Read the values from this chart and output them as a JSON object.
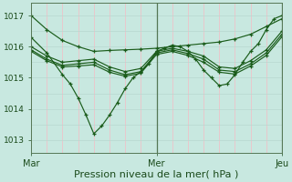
{
  "background_color": "#c8e8e0",
  "plot_bg_color": "#c8e8e0",
  "vgrid_color": "#e8c8cc",
  "hgrid_color": "#b8d8d0",
  "line_color": "#1a5c1a",
  "marker_color": "#1a5c1a",
  "xlabel": "Pression niveau de la mer( hPa )",
  "xlabel_fontsize": 8,
  "ylabel_ticks": [
    1013,
    1014,
    1015,
    1016,
    1017
  ],
  "ylim": [
    1012.6,
    1017.4
  ],
  "xlim": [
    0,
    96
  ],
  "xtick_labels": [
    "Mar",
    "Mer",
    "Jeu"
  ],
  "xtick_positions": [
    0,
    48,
    96
  ],
  "vline_positions": [
    0,
    6,
    12,
    18,
    24,
    30,
    36,
    42,
    48,
    54,
    60,
    66,
    72,
    78,
    84,
    90,
    96
  ],
  "hline_positions": [
    1013,
    1013.5,
    1014,
    1014.5,
    1015,
    1015.5,
    1016,
    1016.5,
    1017
  ],
  "center_vline_x": 48,
  "right_vline_x": 96,
  "lines": [
    {
      "x": [
        0,
        6,
        12,
        18,
        24,
        30,
        36,
        42,
        48,
        54,
        60,
        66,
        72,
        78,
        84,
        90,
        96
      ],
      "y": [
        1017.0,
        1016.55,
        1016.2,
        1016.0,
        1015.85,
        1015.88,
        1015.9,
        1015.92,
        1015.95,
        1016.0,
        1016.05,
        1016.1,
        1016.15,
        1016.25,
        1016.4,
        1016.65,
        1016.9
      ]
    },
    {
      "x": [
        0,
        6,
        12,
        15,
        18,
        21,
        24,
        27,
        30,
        33,
        36,
        39,
        42,
        45,
        48,
        51,
        54,
        57,
        60,
        63,
        66,
        69,
        72,
        75,
        78,
        81,
        84,
        87,
        90,
        93,
        96
      ],
      "y": [
        1016.3,
        1015.8,
        1015.1,
        1014.8,
        1014.35,
        1013.8,
        1013.2,
        1013.45,
        1013.8,
        1014.2,
        1014.65,
        1015.0,
        1015.2,
        1015.45,
        1015.85,
        1015.95,
        1016.05,
        1016.0,
        1015.85,
        1015.6,
        1015.25,
        1015.0,
        1014.75,
        1014.8,
        1015.1,
        1015.5,
        1015.85,
        1016.1,
        1016.55,
        1016.9,
        1017.0
      ]
    },
    {
      "x": [
        0,
        6,
        12,
        18,
        24,
        30,
        36,
        42,
        48,
        54,
        60,
        66,
        72,
        78,
        84,
        90,
        96
      ],
      "y": [
        1016.0,
        1015.7,
        1015.5,
        1015.55,
        1015.6,
        1015.35,
        1015.2,
        1015.3,
        1015.85,
        1015.95,
        1015.85,
        1015.7,
        1015.35,
        1015.3,
        1015.55,
        1015.9,
        1016.5
      ]
    },
    {
      "x": [
        0,
        6,
        12,
        18,
        24,
        30,
        36,
        42,
        48,
        54,
        60,
        66,
        72,
        78,
        84,
        90,
        96
      ],
      "y": [
        1015.9,
        1015.6,
        1015.4,
        1015.45,
        1015.5,
        1015.25,
        1015.1,
        1015.2,
        1015.8,
        1015.9,
        1015.78,
        1015.6,
        1015.25,
        1015.2,
        1015.45,
        1015.8,
        1016.4
      ]
    },
    {
      "x": [
        0,
        6,
        12,
        18,
        24,
        30,
        36,
        42,
        48,
        54,
        60,
        66,
        72,
        78,
        84,
        90,
        96
      ],
      "y": [
        1015.85,
        1015.55,
        1015.35,
        1015.38,
        1015.42,
        1015.18,
        1015.05,
        1015.15,
        1015.75,
        1015.85,
        1015.72,
        1015.5,
        1015.18,
        1015.12,
        1015.38,
        1015.72,
        1016.32
      ]
    }
  ]
}
